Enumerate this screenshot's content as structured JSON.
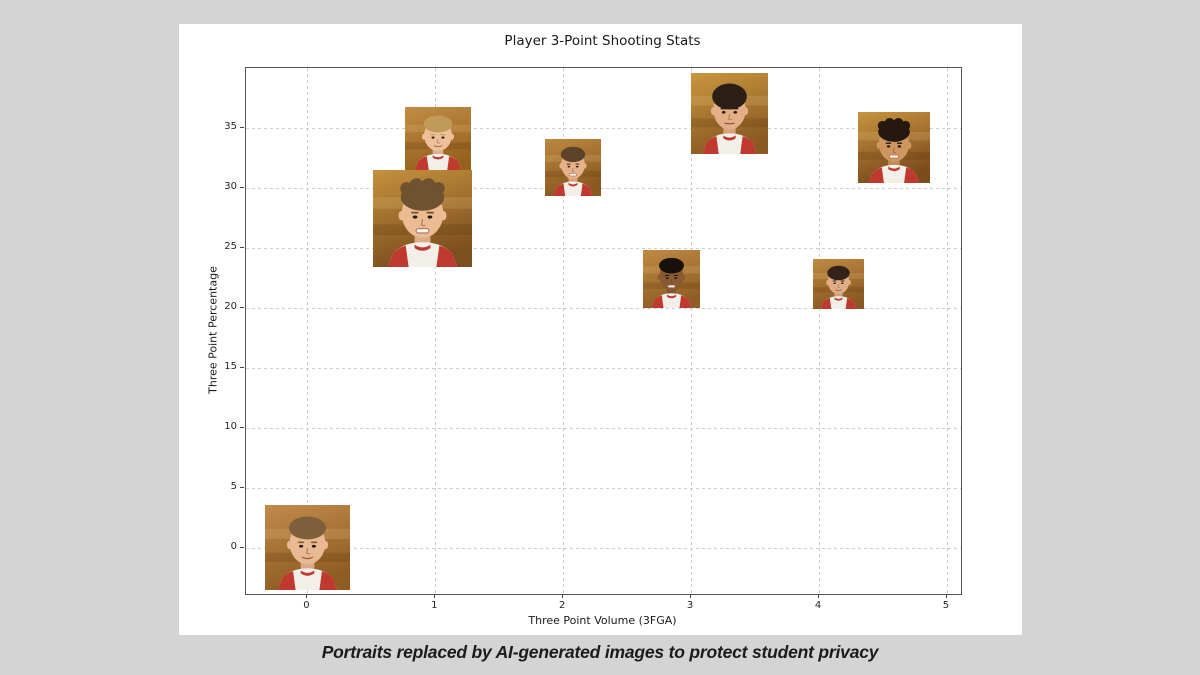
{
  "page": {
    "background_color": "#d4d4d4",
    "figure_background_color": "#ffffff"
  },
  "caption": {
    "text": "Portraits replaced by AI-generated images to protect student privacy"
  },
  "chart_data": {
    "type": "scatter",
    "title": "Player 3-Point Shooting Stats",
    "xlabel": "Three Point Volume (3FGA)",
    "ylabel": "Three Point Percentage",
    "xlim": [
      -0.48,
      5.11
    ],
    "ylim": [
      -3.8,
      40.0
    ],
    "xticks": [
      0,
      1,
      2,
      3,
      4,
      5
    ],
    "yticks": [
      0,
      5,
      10,
      15,
      20,
      25,
      30,
      35
    ],
    "grid": true,
    "grid_color": "#cdcdcd",
    "marker": "student-portrait-photo",
    "marker_note": "each data point is a head-and-shoulders photo of a player in a red-and-white jersey against an orange gym background",
    "points": [
      {
        "x": 0.0,
        "y": 0.1,
        "w": 85,
        "h": 85,
        "portrait": {
          "hair": "#7d5f3c",
          "hair_style": "short",
          "skin": "#e9b992",
          "smile": "soft",
          "bg1": "#c08b4b",
          "bg2": "#8f5c22"
        }
      },
      {
        "x": 0.9,
        "y": 27.5,
        "w": 99,
        "h": 97,
        "portrait": {
          "hair": "#6f522f",
          "hair_style": "curly",
          "skin": "#ecbb92",
          "smile": "teeth",
          "bg1": "#c4913e",
          "bg2": "#7e4f1e"
        }
      },
      {
        "x": 1.02,
        "y": 34.1,
        "w": 66,
        "h": 63,
        "portrait": {
          "hair": "#c09a58",
          "hair_style": "short",
          "skin": "#eec09a",
          "smile": "soft",
          "bg1": "#c28c44",
          "bg2": "#96621f"
        }
      },
      {
        "x": 2.08,
        "y": 31.7,
        "w": 56,
        "h": 57,
        "portrait": {
          "hair": "#5d432a",
          "hair_style": "short",
          "skin": "#e6b28a",
          "smile": "teeth",
          "bg1": "#bd8840",
          "bg2": "#8a5820"
        }
      },
      {
        "x": 3.3,
        "y": 36.2,
        "w": 77,
        "h": 81,
        "portrait": {
          "hair": "#2c1f16",
          "hair_style": "bowl",
          "skin": "#e4af87",
          "smile": "neutral",
          "bg1": "#c9963f",
          "bg2": "#8a5a22"
        }
      },
      {
        "x": 2.85,
        "y": 22.4,
        "w": 57,
        "h": 58,
        "portrait": {
          "hair": "#17100b",
          "hair_style": "short",
          "skin": "#8a5a33",
          "smile": "teeth",
          "bg1": "#c08a43",
          "bg2": "#905e24"
        }
      },
      {
        "x": 4.15,
        "y": 22.0,
        "w": 51,
        "h": 50,
        "portrait": {
          "hair": "#32231a",
          "hair_style": "flat",
          "skin": "#e0ad85",
          "smile": "soft",
          "bg1": "#bf8a42",
          "bg2": "#8a5921"
        }
      },
      {
        "x": 4.59,
        "y": 33.4,
        "w": 72,
        "h": 71,
        "portrait": {
          "hair": "#241811",
          "hair_style": "curly",
          "skin": "#cf9760",
          "smile": "teeth",
          "bg1": "#c79440",
          "bg2": "#7d4c1c"
        }
      }
    ],
    "jersey_colors": {
      "body": "#f2efe9",
      "trim": "#c0392f"
    }
  }
}
